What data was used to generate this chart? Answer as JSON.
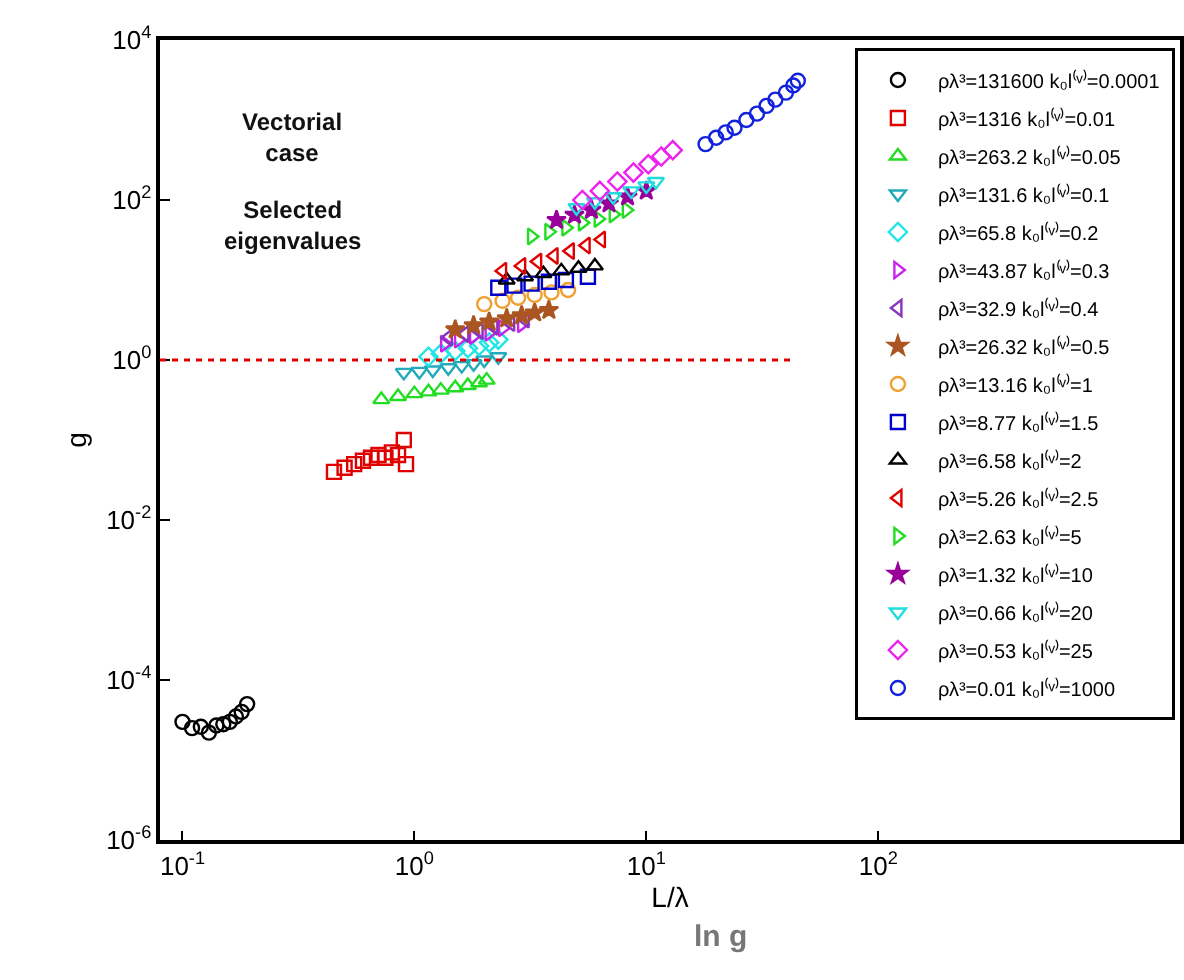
{
  "chart_data": {
    "type": "scatter",
    "xlabel": "L/λ",
    "ylabel": "g",
    "annotations": [
      "Vectorial case",
      "Selected eigenvalues",
      "ln g"
    ],
    "log": "xy",
    "grid": false,
    "legend": "top right",
    "xlim": [
      0.08,
      2000
    ],
    "xticks": [
      {
        "value": 0.1,
        "label": "10$^{-1}$"
      },
      {
        "value": 1,
        "label": "10$^{0}$"
      },
      {
        "value": 10,
        "label": "10$^{1}$"
      },
      {
        "value": 100,
        "label": "10$^{2}$"
      }
    ],
    "ylim": [
      1e-06,
      10000
    ],
    "yticks": [
      {
        "value": 1e-06,
        "label": "10$^{-6}$"
      },
      {
        "value": 0.0001,
        "label": "10$^{-4}$"
      },
      {
        "value": 0.01,
        "label": "10$^{-2}$"
      },
      {
        "value": 1,
        "label": "10$^{0}$"
      },
      {
        "value": 100,
        "label": "10$^{2}$"
      },
      {
        "value": 10000,
        "label": "10$^{4}$"
      }
    ],
    "ref_lines": [
      {
        "axis": "y",
        "value": 1,
        "label": null,
        "color": "#e00000",
        "line_style": "dotted"
      }
    ],
    "series": [
      {
        "name": "ρλ³=131600 k₀l⁽ᵛ⁾=0.0001",
        "color": "#000000",
        "marker": "circle",
        "x": [
          0.1,
          0.11,
          0.12,
          0.13,
          0.14,
          0.15,
          0.16,
          0.17,
          0.18,
          0.19
        ],
        "values": [
          3e-05,
          2.5e-05,
          2.6e-05,
          2.2e-05,
          2.7e-05,
          2.8e-05,
          3e-05,
          3.5e-05,
          4e-05,
          5e-05
        ]
      },
      {
        "name": "ρλ³=1316 k₀l⁽ᵛ⁾=0.01",
        "color": "#e00000",
        "marker": "square",
        "x": [
          0.45,
          0.5,
          0.55,
          0.6,
          0.65,
          0.7,
          0.75,
          0.8,
          0.85,
          0.9,
          0.92
        ],
        "values": [
          0.04,
          0.045,
          0.05,
          0.055,
          0.06,
          0.065,
          0.06,
          0.07,
          0.065,
          0.1,
          0.05
        ]
      },
      {
        "name": "ρλ³=263.2 k₀l⁽ᵛ⁾=0.05",
        "color": "#22dd22",
        "marker": "triangle",
        "x": [
          0.72,
          0.85,
          1.0,
          1.15,
          1.3,
          1.5,
          1.7,
          1.9,
          2.05
        ],
        "values": [
          0.32,
          0.35,
          0.38,
          0.4,
          0.42,
          0.45,
          0.48,
          0.52,
          0.56
        ]
      },
      {
        "name": "ρλ³=131.6 k₀l⁽ᵛ⁾=0.1",
        "color": "#22aabb",
        "marker": "triangle-down",
        "x": [
          0.9,
          1.05,
          1.2,
          1.4,
          1.6,
          1.8,
          2.0,
          2.3
        ],
        "values": [
          0.7,
          0.72,
          0.75,
          0.8,
          0.85,
          0.9,
          1.0,
          1.1
        ]
      },
      {
        "name": "ρλ³=65.8 k₀l⁽ᵛ⁾=0.2",
        "color": "#22e5e5",
        "marker": "diamond",
        "x": [
          1.15,
          1.3,
          1.5,
          1.7,
          1.9,
          2.1,
          2.3
        ],
        "values": [
          1.1,
          1.2,
          1.3,
          1.4,
          1.5,
          1.65,
          1.8
        ]
      },
      {
        "name": "ρλ³=43.87 k₀l⁽ᵛ⁾=0.3",
        "color": "#cc22ee",
        "marker": "triangle-right",
        "x": [
          1.35,
          1.55,
          1.8,
          2.1,
          2.4,
          2.9
        ],
        "values": [
          1.6,
          1.8,
          2.0,
          2.2,
          2.5,
          2.8
        ]
      },
      {
        "name": "ρλ³=32.9 k₀l⁽ᵛ⁾=0.4",
        "color": "#8833bb",
        "marker": "triangle-left",
        "x": [
          1.4,
          1.65,
          1.9,
          2.2,
          2.6,
          3.0
        ],
        "values": [
          1.9,
          2.1,
          2.3,
          2.6,
          2.9,
          3.2
        ]
      },
      {
        "name": "ρλ³=26.32 k₀l⁽ᵛ⁾=0.5",
        "color": "#aa5522",
        "marker": "star",
        "x": [
          1.5,
          1.8,
          2.1,
          2.5,
          2.9,
          3.3,
          3.8
        ],
        "values": [
          2.4,
          2.7,
          3.0,
          3.3,
          3.6,
          3.9,
          4.2
        ]
      },
      {
        "name": "ρλ³=13.16 k₀l⁽ᵛ⁾=1",
        "color": "#f0a030",
        "marker": "circle",
        "x": [
          2.0,
          2.4,
          2.8,
          3.3,
          3.9,
          4.6
        ],
        "values": [
          5.0,
          5.5,
          6.0,
          6.5,
          7.0,
          7.5
        ]
      },
      {
        "name": "ρλ³=8.77 k₀l⁽ᵛ⁾=1.5",
        "color": "#0000cc",
        "marker": "square",
        "x": [
          2.3,
          2.7,
          3.2,
          3.8,
          4.5,
          5.6
        ],
        "values": [
          8,
          8.5,
          9,
          9.5,
          10,
          11
        ]
      },
      {
        "name": "ρλ³=6.58 k₀l⁽ᵛ⁾=2",
        "color": "#000000",
        "marker": "triangle",
        "x": [
          2.5,
          3.0,
          3.6,
          4.3,
          5.1,
          6.0
        ],
        "values": [
          10,
          11,
          12,
          13,
          14,
          15
        ]
      },
      {
        "name": "ρλ³=5.26 k₀l⁽ᵛ⁾=2.5",
        "color": "#e00000",
        "marker": "triangle-left",
        "x": [
          2.4,
          2.9,
          3.4,
          4.0,
          4.7,
          5.5,
          6.4
        ],
        "values": [
          13,
          15,
          17,
          20,
          23,
          27,
          32
        ]
      },
      {
        "name": "ρλ³=2.63 k₀l⁽ᵛ⁾=5",
        "color": "#22dd22",
        "marker": "triangle-right",
        "x": [
          3.2,
          3.8,
          4.5,
          5.3,
          6.2,
          7.2,
          8.2
        ],
        "values": [
          35,
          40,
          45,
          52,
          58,
          66,
          75
        ]
      },
      {
        "name": "ρλ³=1.32 k₀l⁽ᵛ⁾=10",
        "color": "#990099",
        "marker": "star",
        "x": [
          4.1,
          4.9,
          5.8,
          6.9,
          8.3,
          10
        ],
        "values": [
          56,
          65,
          75,
          90,
          110,
          130
        ]
      },
      {
        "name": "ρλ³=0.66 k₀l⁽ᵛ⁾=20",
        "color": "#22dddd",
        "marker": "triangle-down",
        "x": [
          5.0,
          6.0,
          7.2,
          8.6,
          10,
          11
        ],
        "values": [
          80,
          95,
          110,
          130,
          150,
          170
        ]
      },
      {
        "name": "ρλ³=0.53 k₀l⁽ᵛ⁾=25",
        "color": "#ee22ee",
        "marker": "diamond",
        "x": [
          5.3,
          6.3,
          7.5,
          8.8,
          10.2,
          11.6,
          13
        ],
        "values": [
          100,
          130,
          170,
          220,
          280,
          350,
          420
        ]
      },
      {
        "name": "ρλ³=0.01 k₀l⁽ᵛ⁾=1000",
        "color": "#1122dd",
        "marker": "circle",
        "x": [
          18,
          20,
          22,
          24,
          27,
          30,
          33,
          36,
          40,
          43,
          45
        ],
        "values": [
          500,
          600,
          700,
          800,
          1000,
          1200,
          1500,
          1800,
          2200,
          2700,
          3100
        ]
      }
    ]
  }
}
